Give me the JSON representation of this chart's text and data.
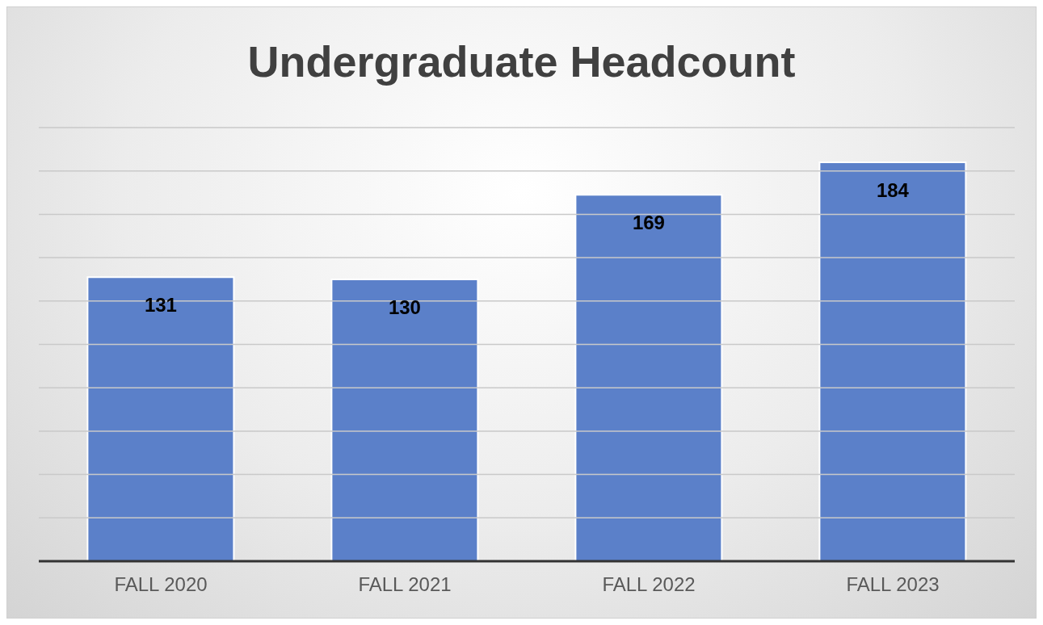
{
  "chart_data": {
    "type": "bar",
    "title": "Undergraduate Headcount",
    "categories": [
      "FALL 2020",
      "FALL 2021",
      "FALL 2022",
      "FALL 2023"
    ],
    "values": [
      131,
      130,
      169,
      184
    ],
    "color": "#5b80c9",
    "data_labels": true,
    "ylim": [
      0,
      200
    ],
    "yticks": [
      {
        "value": 0,
        "label": null
      },
      {
        "value": 20,
        "label": null
      },
      {
        "value": 40,
        "label": null
      },
      {
        "value": 60,
        "label": null
      },
      {
        "value": 80,
        "label": null
      },
      {
        "value": 100,
        "label": null
      },
      {
        "value": 120,
        "label": null
      },
      {
        "value": 140,
        "label": null
      },
      {
        "value": 160,
        "label": null
      },
      {
        "value": 180,
        "label": null
      },
      {
        "value": 200,
        "label": null
      }
    ],
    "grid": "y",
    "tick_labels": "x"
  }
}
